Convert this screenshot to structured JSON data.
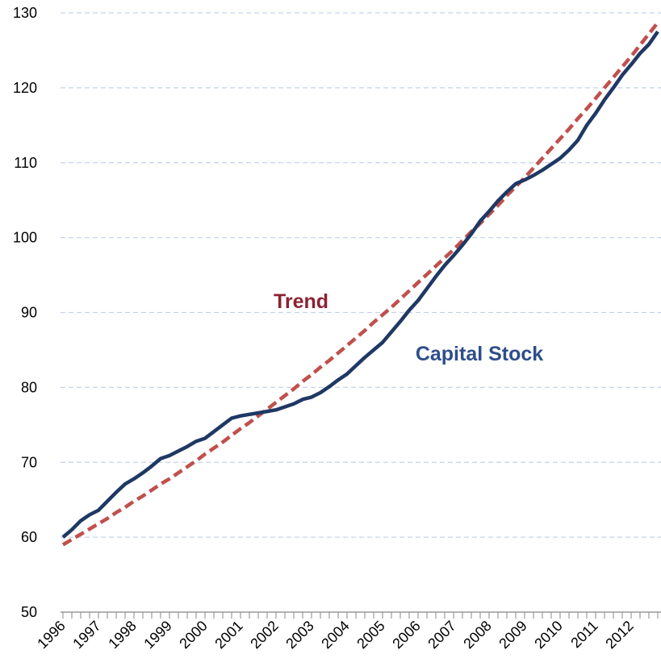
{
  "chart_data": {
    "type": "line",
    "categories": [
      "1996",
      null,
      null,
      null,
      "1997",
      null,
      null,
      null,
      "1998",
      null,
      null,
      null,
      "1999",
      null,
      null,
      null,
      "2000",
      null,
      null,
      null,
      "2001",
      null,
      null,
      null,
      "2002",
      null,
      null,
      null,
      "2003",
      null,
      null,
      null,
      "2004",
      null,
      null,
      null,
      "2005",
      null,
      null,
      null,
      "2006",
      null,
      null,
      null,
      "2007",
      null,
      null,
      null,
      "2008",
      null,
      null,
      null,
      "2009",
      null,
      null,
      null,
      "2010",
      null,
      null,
      null,
      "2011",
      null,
      null,
      null,
      "2012",
      null,
      null,
      null
    ],
    "series": [
      {
        "name": "Capital Stock",
        "color": "#1f3864",
        "dashed": false,
        "values": [
          60.0,
          61.0,
          62.2,
          63.0,
          63.6,
          64.8,
          66.0,
          67.1,
          67.8,
          68.6,
          69.5,
          70.5,
          70.9,
          71.5,
          72.1,
          72.8,
          73.2,
          74.1,
          75.0,
          75.9,
          76.2,
          76.4,
          76.6,
          76.8,
          77.0,
          77.4,
          77.8,
          78.4,
          78.7,
          79.3,
          80.1,
          81.0,
          81.8,
          82.9,
          84.0,
          85.0,
          86.0,
          87.4,
          88.8,
          90.3,
          91.6,
          93.2,
          94.8,
          96.3,
          97.6,
          99.0,
          100.5,
          102.2,
          103.5,
          104.9,
          106.1,
          107.2,
          107.7,
          108.3,
          109.0,
          109.8,
          110.6,
          111.7,
          113.0,
          115.0,
          116.6,
          118.4,
          120.0,
          121.7,
          123.1,
          124.6,
          125.8,
          127.5
        ]
      },
      {
        "name": "Trend",
        "color": "#c0504d",
        "dashed": true,
        "values": [
          59.0,
          59.7,
          60.4,
          61.1,
          61.8,
          62.5,
          63.3,
          64.0,
          64.8,
          65.5,
          66.3,
          67.1,
          67.8,
          68.6,
          69.4,
          70.2,
          71.1,
          71.9,
          72.7,
          73.6,
          74.5,
          75.3,
          76.2,
          77.1,
          78.0,
          78.9,
          79.8,
          80.8,
          81.7,
          82.7,
          83.6,
          84.6,
          85.6,
          86.6,
          87.6,
          88.7,
          89.7,
          90.7,
          91.8,
          92.9,
          94.0,
          95.1,
          96.2,
          97.3,
          98.4,
          99.6,
          100.8,
          101.9,
          103.1,
          104.3,
          105.6,
          106.8,
          108.0,
          109.3,
          110.6,
          111.9,
          113.2,
          114.5,
          115.9,
          117.2,
          118.6,
          120.0,
          121.4,
          122.8,
          124.2,
          125.7,
          127.2,
          128.7
        ]
      }
    ],
    "annotations": [
      {
        "text": "Trend",
        "color": "#8b2332"
      },
      {
        "text": "Capital Stock",
        "color": "#2e4e8a"
      }
    ],
    "ylim": [
      50,
      130
    ],
    "yticks": [
      50,
      60,
      70,
      80,
      90,
      100,
      110,
      120,
      130
    ],
    "grid": true
  }
}
